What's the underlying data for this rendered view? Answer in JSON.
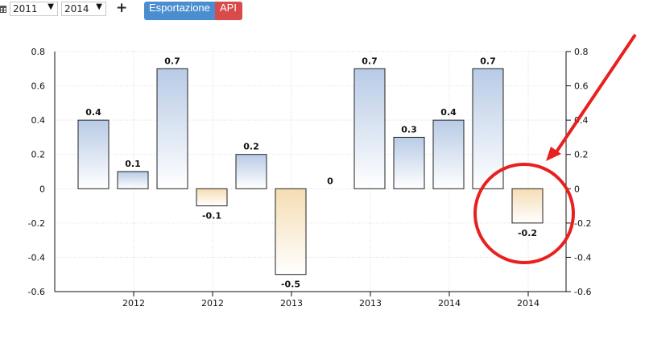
{
  "toolbar": {
    "calendar_icon": "calendar-icon",
    "start_year": "2011",
    "end_year": "2014",
    "add_icon": "+",
    "export_label": "Esportazione",
    "api_label": "API",
    "export_color": "#4a8ed0",
    "api_color": "#d94b4b"
  },
  "annotation": {
    "arrow_color": "#e8201e",
    "circle_color": "#e8201e"
  },
  "chart_data": {
    "type": "bar",
    "categories": [
      "2012",
      "2012",
      "2012",
      "2012",
      "2012",
      "2013",
      "2013",
      "2013",
      "2013",
      "2014",
      "2014",
      "2014"
    ],
    "x_tick_labels": [
      "2012",
      "2012",
      "2013",
      "2013",
      "2014",
      "2014"
    ],
    "values": [
      0.4,
      0.1,
      0.7,
      -0.1,
      0.2,
      -0.5,
      0,
      0.7,
      0.3,
      0.4,
      0.7,
      -0.2
    ],
    "data_labels": [
      "0.4",
      "0.1",
      "0.7",
      "-0.1",
      "0.2",
      "-0.5",
      "0",
      "0.7",
      "0.3",
      "0.4",
      "0.7",
      "-0.2"
    ],
    "ylim": [
      -0.6,
      0.8
    ],
    "y_ticks": [
      "0.8",
      "0.6",
      "0.4",
      "0.2",
      "0",
      "-0.2",
      "-0.4",
      "-0.6"
    ],
    "y_tick_values": [
      0.8,
      0.6,
      0.4,
      0.2,
      0,
      -0.2,
      -0.4,
      -0.6
    ],
    "grid": true,
    "positive_color": "#b8cbe6",
    "negative_color": "#f5ddb3",
    "title": "",
    "xlabel": "",
    "ylabel": ""
  }
}
